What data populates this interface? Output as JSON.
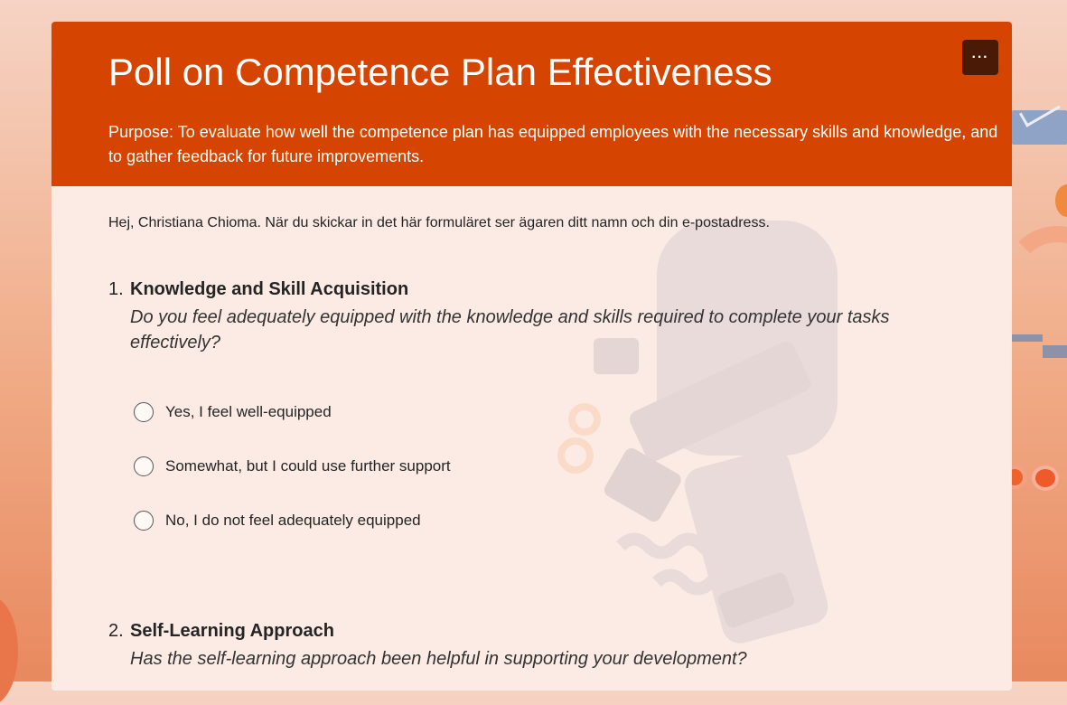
{
  "form": {
    "title": "Poll on Competence Plan Effectiveness",
    "purpose": "Purpose: To evaluate how well the competence plan has equipped employees with the necessary skills and knowledge, and to gather feedback for future improvements.",
    "more_label": "···",
    "greeting": "Hej, Christiana Chioma. När du skickar in det här formuläret ser ägaren ditt namn och din e-postadress."
  },
  "questions": [
    {
      "number": "1.",
      "title": "Knowledge and Skill Acquisition",
      "subtitle": "Do you feel adequately equipped with the knowledge and skills required to complete your tasks effectively?",
      "options": [
        {
          "label": "Yes, I feel well-equipped"
        },
        {
          "label": "Somewhat, but I could use further support"
        },
        {
          "label": "No, I do not feel adequately equipped"
        }
      ]
    },
    {
      "number": "2.",
      "title": "Self-Learning Approach",
      "subtitle": "Has the self-learning approach been helpful in supporting your development?"
    }
  ],
  "colors": {
    "header": "#d54400",
    "card": "#fcebe4",
    "more_button": "#4a1a06"
  }
}
